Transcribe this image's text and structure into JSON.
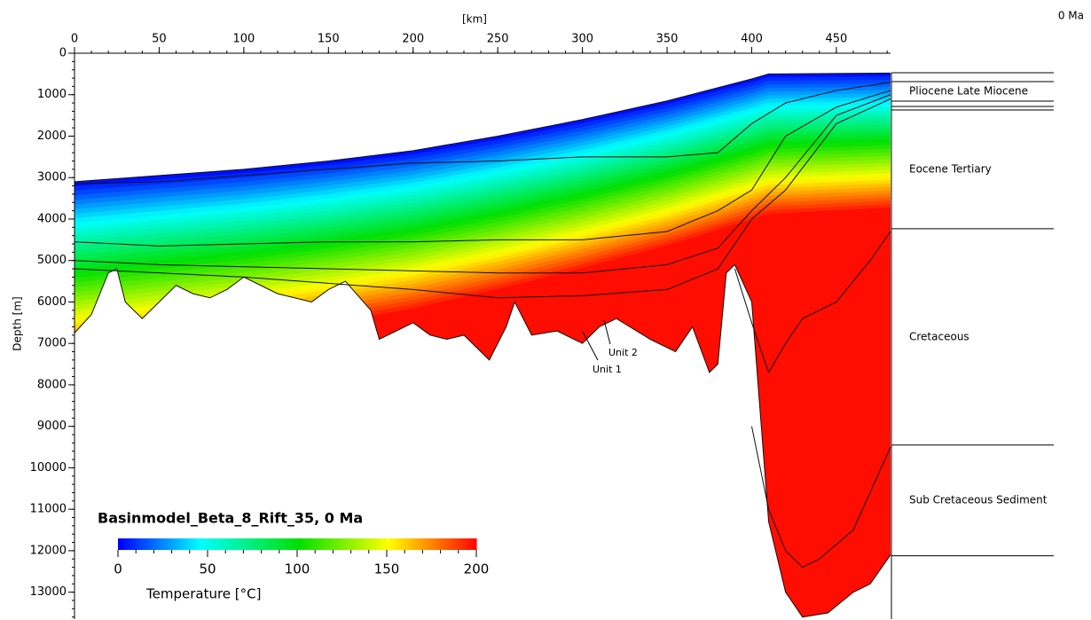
{
  "chart_data": {
    "type": "section",
    "title": "Basinmodel_Beta_8_Rift_35, 0 Ma",
    "time_label": "0 Ma",
    "xlabel": "[km]",
    "ylabel": "Depth [m]",
    "xlim": [
      0,
      482
    ],
    "ylim": [
      0,
      13650
    ],
    "xticks": [
      0,
      50,
      100,
      150,
      200,
      250,
      300,
      350,
      400,
      450
    ],
    "yticks": [
      0,
      1000,
      2000,
      3000,
      4000,
      5000,
      6000,
      7000,
      8000,
      9000,
      10000,
      11000,
      12000,
      13000
    ],
    "surfaces": [
      {
        "x": [
          0,
          50,
          100,
          150,
          200,
          250,
          300,
          350,
          400,
          410,
          482
        ],
        "values": [
          3100,
          2950,
          2800,
          2600,
          2350,
          2000,
          1600,
          1150,
          620,
          500,
          480
        ]
      },
      {
        "x": [
          0,
          50,
          100,
          150,
          200,
          250,
          300,
          350,
          380,
          400,
          420,
          450,
          482
        ],
        "values": [
          3150,
          3100,
          2950,
          2800,
          2650,
          2600,
          2500,
          2500,
          2400,
          1700,
          1200,
          900,
          700
        ]
      },
      {
        "x": [
          0,
          50,
          100,
          150,
          200,
          250,
          300,
          350,
          380,
          400,
          420,
          450,
          482
        ],
        "values": [
          4550,
          4650,
          4600,
          4550,
          4550,
          4500,
          4500,
          4300,
          3800,
          3300,
          2000,
          1300,
          900
        ]
      },
      {
        "x": [
          0,
          50,
          100,
          150,
          200,
          250,
          300,
          350,
          380,
          400,
          420,
          450,
          482
        ],
        "values": [
          5000,
          5100,
          5150,
          5200,
          5250,
          5300,
          5300,
          5100,
          4700,
          3800,
          3000,
          1500,
          1000
        ]
      },
      {
        "x": [
          0,
          100,
          200,
          250,
          300,
          350,
          380,
          400,
          420,
          450,
          482
        ],
        "values": [
          5200,
          5400,
          5700,
          5900,
          5850,
          5700,
          5200,
          4000,
          3300,
          1700,
          1100
        ]
      },
      {
        "x": [
          390,
          400,
          410,
          420,
          430,
          450,
          470,
          482
        ],
        "values": [
          5200,
          6500,
          7700,
          7000,
          6400,
          6000,
          5000,
          4300
        ]
      },
      {
        "x": [
          400,
          410,
          420,
          430,
          440,
          460,
          482
        ],
        "values": [
          9000,
          11000,
          12000,
          12400,
          12200,
          11500,
          9500
        ]
      },
      {
        "x": [
          0,
          10,
          20,
          25,
          30,
          40,
          55,
          60,
          70,
          80,
          90,
          100,
          110,
          120,
          130,
          140,
          150,
          160,
          175,
          180,
          190,
          200,
          210,
          220,
          230,
          245,
          255,
          260,
          270,
          285,
          300,
          310,
          320,
          340,
          355,
          365,
          375,
          380,
          385,
          390,
          400,
          410,
          420,
          430,
          445,
          460,
          470,
          482
        ],
        "values": [
          6750,
          6300,
          5300,
          5200,
          6000,
          6400,
          5800,
          5600,
          5800,
          5900,
          5700,
          5400,
          5600,
          5800,
          5900,
          6000,
          5700,
          5500,
          6200,
          6900,
          6700,
          6500,
          6800,
          6900,
          6800,
          7400,
          6600,
          6000,
          6800,
          6700,
          7000,
          6600,
          6400,
          6900,
          7200,
          6600,
          7700,
          7500,
          5300,
          5100,
          6000,
          11300,
          13000,
          13600,
          13500,
          13000,
          12800,
          12100
        ]
      }
    ],
    "annotations": [
      "Unit 1",
      "Unit 2"
    ],
    "colorbar": {
      "label": "Temperature [°C]",
      "clim": [
        0,
        200
      ],
      "ticks": [
        0,
        50,
        100,
        150,
        200
      ],
      "colormap": [
        {
          "value": 0,
          "color": "#0000ff"
        },
        {
          "value": 45,
          "color": "#00ffff"
        },
        {
          "value": 100,
          "color": "#00e000"
        },
        {
          "value": 150,
          "color": "#ffff00"
        },
        {
          "value": 200,
          "color": "#ff0000"
        }
      ]
    },
    "stratigraphy": {
      "boundaries": [
        470,
        684,
        1155,
        1283,
        1368,
        4234,
        9450,
        12123
      ],
      "units": [
        "Pliocene Late Miocene",
        "Eocene Tertiary",
        "Cretaceous",
        "Sub Cretaceous Sediment"
      ]
    }
  }
}
